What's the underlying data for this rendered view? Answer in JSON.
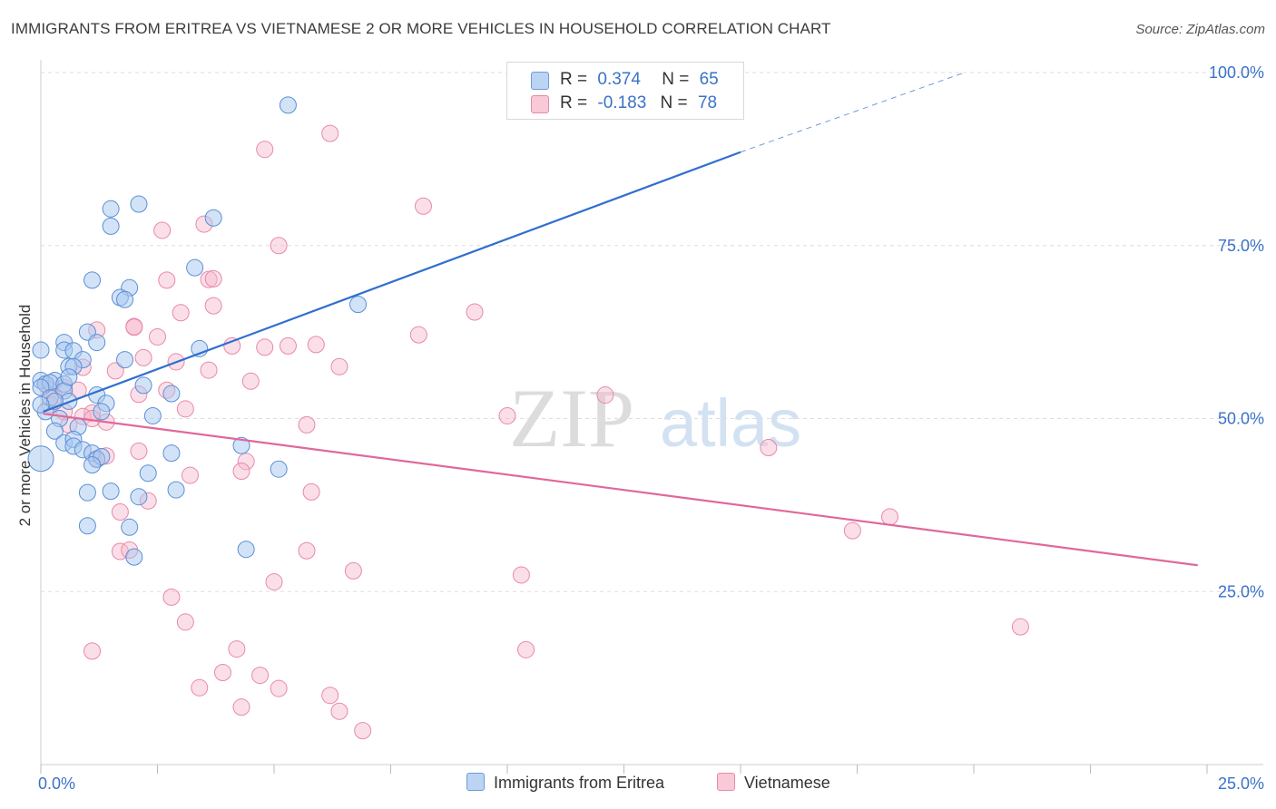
{
  "header": {
    "title": "IMMIGRANTS FROM ERITREA VS VIETNAMESE 2 OR MORE VEHICLES IN HOUSEHOLD CORRELATION CHART",
    "source": "Source: ZipAtlas.com"
  },
  "watermark": {
    "zip": "ZIP",
    "atlas": "atlas"
  },
  "legend": {
    "eritrea": {
      "r_label": "R =",
      "r_value": "0.374",
      "n_label": "N =",
      "n_value": "65"
    },
    "vietnamese": {
      "r_label": "R =",
      "r_value": "-0.183",
      "n_label": "N =",
      "n_value": "78"
    }
  },
  "colors": {
    "eritrea_fill": "#a8c8f0",
    "eritrea_stroke": "#5b8fd6",
    "eritrea_line": "#2f6fcf",
    "vietnamese_fill": "#f7b8cc",
    "vietnamese_stroke": "#e889a8",
    "vietnamese_line": "#e0689a",
    "axis_label": "#3a72c8",
    "grid": "#dddddd"
  },
  "chart_data": {
    "type": "scatter",
    "title": "IMMIGRANTS FROM ERITREA VS VIETNAMESE 2 OR MORE VEHICLES IN HOUSEHOLD CORRELATION CHART",
    "xlabel": "",
    "ylabel": "2 or more Vehicles in Household",
    "xlim": [
      0,
      25
    ],
    "ylim": [
      0,
      100
    ],
    "x_tick_labels": [
      "0.0%",
      "25.0%"
    ],
    "y_ticks": [
      25,
      50,
      75,
      100
    ],
    "y_tick_labels": [
      "25.0%",
      "50.0%",
      "75.0%",
      "100.0%"
    ],
    "series": [
      {
        "name": "Immigrants from Eritrea",
        "R": 0.374,
        "N": 65,
        "trend": {
          "x": [
            0.05,
            15.0
          ],
          "y": [
            51,
            88.5
          ],
          "dashed_to": [
            19.8,
            100
          ]
        },
        "points": [
          [
            5.3,
            95.3
          ],
          [
            2.1,
            81
          ],
          [
            1.5,
            80.3
          ],
          [
            3.7,
            79
          ],
          [
            1.5,
            77.8
          ],
          [
            3.3,
            71.8
          ],
          [
            1.1,
            70
          ],
          [
            1.9,
            68.9
          ],
          [
            1.7,
            67.5
          ],
          [
            1.8,
            67.2
          ],
          [
            6.8,
            66.5
          ],
          [
            1.0,
            62.5
          ],
          [
            0.5,
            61
          ],
          [
            1.2,
            61
          ],
          [
            0.5,
            59.9
          ],
          [
            0.7,
            59.8
          ],
          [
            3.4,
            60.1
          ],
          [
            0,
            59.9
          ],
          [
            0.9,
            58.5
          ],
          [
            1.8,
            58.5
          ],
          [
            0.6,
            57.5
          ],
          [
            0.7,
            57.5
          ],
          [
            0.3,
            55.5
          ],
          [
            0,
            55.5
          ],
          [
            0.1,
            55
          ],
          [
            0.2,
            55.2
          ],
          [
            0.5,
            55
          ],
          [
            0,
            54.5
          ],
          [
            0.5,
            54
          ],
          [
            2.2,
            54.8
          ],
          [
            2.8,
            53.6
          ],
          [
            0.6,
            52.5
          ],
          [
            1.2,
            53.4
          ],
          [
            1.4,
            52.2
          ],
          [
            1.3,
            51
          ],
          [
            0.4,
            50
          ],
          [
            2.4,
            50.4
          ],
          [
            0.8,
            48.8
          ],
          [
            0.3,
            48.2
          ],
          [
            0.5,
            46.5
          ],
          [
            0.7,
            47
          ],
          [
            0.7,
            46
          ],
          [
            0.9,
            45.5
          ],
          [
            1.1,
            45
          ],
          [
            2.8,
            45
          ],
          [
            4.3,
            46.1
          ],
          [
            1.2,
            44.1
          ],
          [
            1.3,
            44.5
          ],
          [
            0,
            44.2
          ],
          [
            1.1,
            43.3
          ],
          [
            2.3,
            42.1
          ],
          [
            5.1,
            42.7
          ],
          [
            2.9,
            39.7
          ],
          [
            1.0,
            39.3
          ],
          [
            1.5,
            39.5
          ],
          [
            2.1,
            38.7
          ],
          [
            1.0,
            34.5
          ],
          [
            1.9,
            34.3
          ],
          [
            4.4,
            31.1
          ],
          [
            2.0,
            30
          ],
          [
            0.1,
            51
          ],
          [
            0.2,
            53
          ],
          [
            0.3,
            52.5
          ],
          [
            0.6,
            56
          ],
          [
            0,
            52
          ]
        ]
      },
      {
        "name": "Vietnamese",
        "R": -0.183,
        "N": 78,
        "trend": {
          "x": [
            0.05,
            24.8
          ],
          "y": [
            50.7,
            28.8
          ]
        },
        "points": [
          [
            6.2,
            91.2
          ],
          [
            4.8,
            88.9
          ],
          [
            8.2,
            80.7
          ],
          [
            3.5,
            78.1
          ],
          [
            2.6,
            77.2
          ],
          [
            5.1,
            75
          ],
          [
            2.7,
            70
          ],
          [
            3.6,
            70.1
          ],
          [
            3.7,
            70.2
          ],
          [
            9.3,
            65.4
          ],
          [
            3.0,
            65.3
          ],
          [
            3.7,
            66.3
          ],
          [
            2.0,
            63.3
          ],
          [
            2.0,
            63.2
          ],
          [
            1.2,
            62.8
          ],
          [
            2.5,
            61.8
          ],
          [
            8.1,
            62.1
          ],
          [
            4.1,
            60.5
          ],
          [
            4.8,
            60.3
          ],
          [
            5.3,
            60.5
          ],
          [
            5.9,
            60.7
          ],
          [
            2.2,
            58.8
          ],
          [
            2.9,
            58.2
          ],
          [
            6.4,
            57.5
          ],
          [
            0.9,
            57.4
          ],
          [
            1.6,
            56.9
          ],
          [
            4.5,
            55.4
          ],
          [
            0.5,
            54.5
          ],
          [
            0.2,
            54.1
          ],
          [
            0.8,
            54.1
          ],
          [
            2.1,
            53.5
          ],
          [
            2.7,
            54.1
          ],
          [
            0.1,
            55
          ],
          [
            12.1,
            53.4
          ],
          [
            3.1,
            51.4
          ],
          [
            1.1,
            50.8
          ],
          [
            0.6,
            49.1
          ],
          [
            1.4,
            49.5
          ],
          [
            10.0,
            50.4
          ],
          [
            0.9,
            50.3
          ],
          [
            5.7,
            49.1
          ],
          [
            15.6,
            45.8
          ],
          [
            2.1,
            45.3
          ],
          [
            1.4,
            44.6
          ],
          [
            1.2,
            44.2
          ],
          [
            4.4,
            43.8
          ],
          [
            3.2,
            41.8
          ],
          [
            4.3,
            42.4
          ],
          [
            5.8,
            39.4
          ],
          [
            2.3,
            38.1
          ],
          [
            1.7,
            36.5
          ],
          [
            18.2,
            35.8
          ],
          [
            17.4,
            33.8
          ],
          [
            1.7,
            30.8
          ],
          [
            1.9,
            31
          ],
          [
            5.7,
            30.9
          ],
          [
            6.7,
            28
          ],
          [
            10.3,
            27.4
          ],
          [
            5.0,
            26.4
          ],
          [
            2.8,
            24.2
          ],
          [
            3.1,
            20.6
          ],
          [
            21.0,
            19.9
          ],
          [
            1.1,
            16.4
          ],
          [
            4.2,
            16.7
          ],
          [
            10.4,
            16.6
          ],
          [
            3.9,
            13.3
          ],
          [
            4.7,
            12.9
          ],
          [
            3.4,
            11.1
          ],
          [
            5.1,
            11
          ],
          [
            6.2,
            10
          ],
          [
            4.3,
            8.3
          ],
          [
            6.4,
            7.7
          ],
          [
            6.9,
            4.9
          ],
          [
            0.5,
            51
          ],
          [
            0.2,
            52
          ],
          [
            0.3,
            53
          ],
          [
            1.1,
            50
          ],
          [
            3.6,
            57
          ]
        ]
      }
    ]
  }
}
